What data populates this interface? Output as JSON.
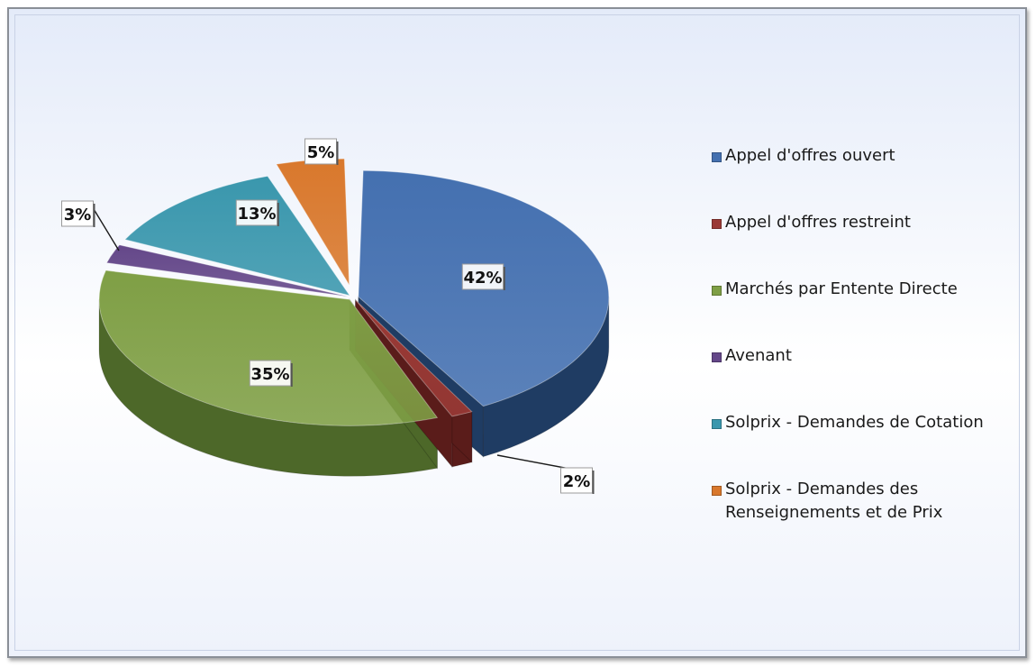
{
  "chart_data": {
    "type": "pie",
    "title": "",
    "categories": [
      "Appel d'offres ouvert",
      "Appel d'offres restreint",
      "Marchés par Entente Directe",
      "Avenant",
      "Solprix - Demandes de Cotation",
      "Solprix - Demandes des Renseignements et de Prix"
    ],
    "values": [
      42,
      2,
      35,
      3,
      13,
      5
    ],
    "data_labels": [
      "42%",
      "2%",
      "35%",
      "3%",
      "13%",
      "5%"
    ],
    "colors": [
      "#4470b0",
      "#9a3a36",
      "#7f9f45",
      "#644789",
      "#3a97ad",
      "#d9782c"
    ],
    "side_colors": [
      "#1f3c63",
      "#5a1c1a",
      "#4d6829",
      "#35224b",
      "#1f5a68",
      "#8f4a18"
    ],
    "legend_position": "right",
    "style": "3d-exploded"
  }
}
